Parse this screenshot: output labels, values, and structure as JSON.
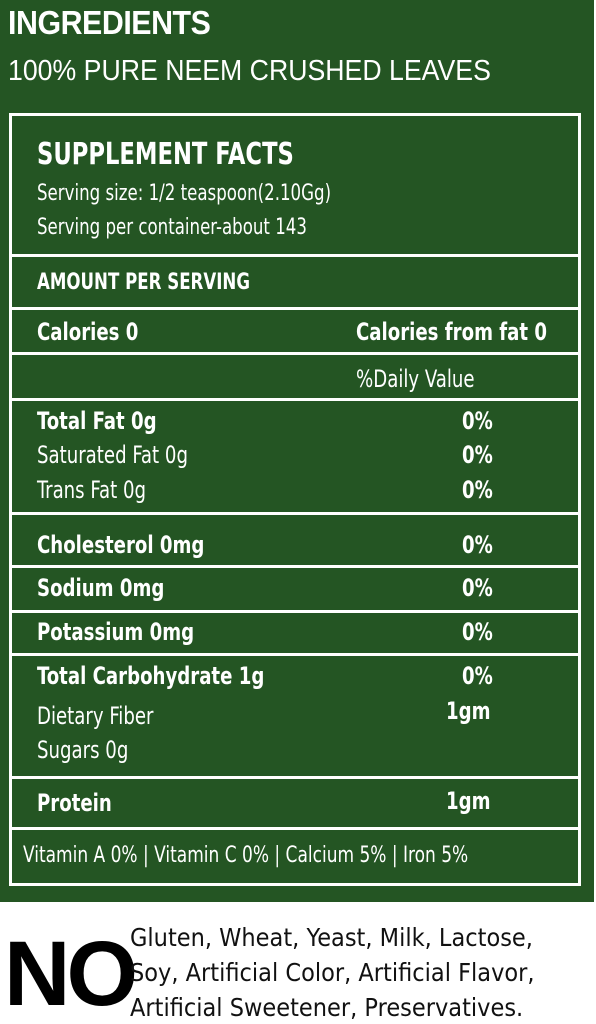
{
  "ingredients": {
    "title": "INGREDIENTS",
    "text": "100% PURE NEEM CRUSHED LEAVES"
  },
  "facts": {
    "title": "SUPPLEMENT FACTS",
    "serving_size": "Serving size: 1/2 teaspoon(2.10Gg)",
    "servings_per_container": "Serving per container-about 143",
    "amount_header": "AMOUNT PER SERVING",
    "calories": "Calories 0",
    "calories_from_fat": "Calories from fat 0",
    "daily_value_header": "%Daily Value",
    "rows": {
      "total_fat": {
        "label": "Total Fat 0g",
        "value": "0%"
      },
      "saturated_fat": {
        "label": "Saturated Fat 0g",
        "value": "0%"
      },
      "trans_fat": {
        "label": "Trans Fat 0g",
        "value": "0%"
      },
      "cholesterol": {
        "label": "Cholesterol 0mg",
        "value": "0%"
      },
      "sodium": {
        "label": "Sodium 0mg",
        "value": "0%"
      },
      "potassium": {
        "label": "Potassium 0mg",
        "value": "0%"
      },
      "total_carbohydrate": {
        "label": "Total Carbohydrate 1g",
        "value": "0%"
      },
      "dietary_fiber": {
        "label": "Dietary Fiber",
        "value": "1gm"
      },
      "sugars": {
        "label": "Sugars 0g"
      },
      "protein": {
        "label": "Protein",
        "value": "1gm"
      }
    },
    "vitamins": "Vitamin A 0% | Vitamin C 0% | Calcium 5% | Iron 5%"
  },
  "free_from": {
    "no_word": "NO",
    "line1": "Gluten, Wheat, Yeast, Milk, Lactose,",
    "line2": "Soy, Artificial Color, Artificial Flavor,",
    "line3": "Artificial Sweetener, Preservatives."
  },
  "colors": {
    "panel_green": "#245523",
    "text_white": "#ffffff"
  }
}
